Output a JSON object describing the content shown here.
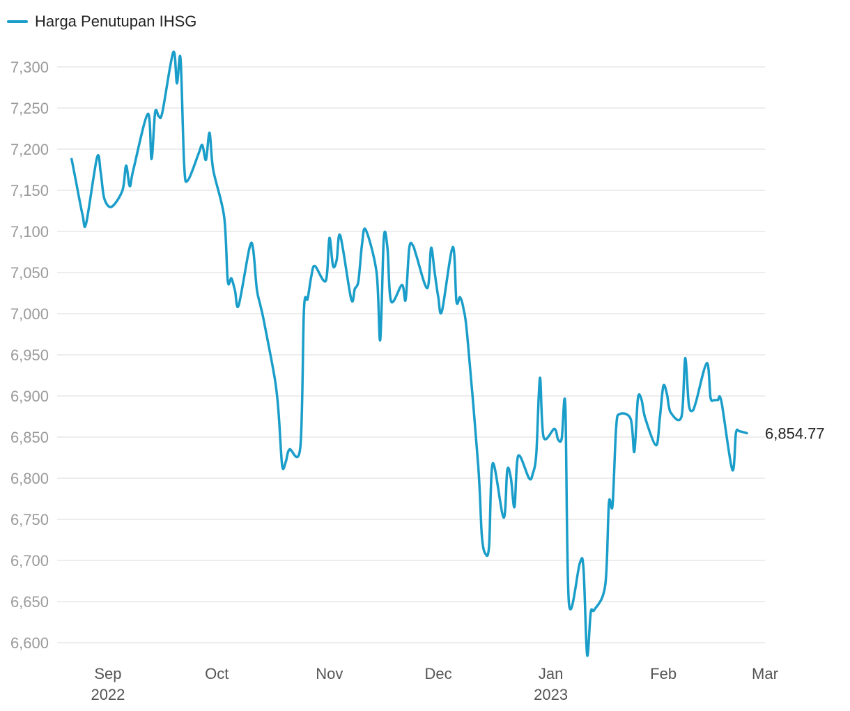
{
  "chart_data": {
    "type": "line",
    "colors": {
      "series": "#1a9ec9",
      "grid": "#e2e2e2",
      "tick": "#9a9a9a"
    },
    "series": [
      {
        "name": "Harga Penutupan IHSG",
        "points": [
          [
            "2022-08-22",
            7188
          ],
          [
            "2022-08-23",
            7165
          ],
          [
            "2022-08-25",
            7120
          ],
          [
            "2022-08-26",
            7110
          ],
          [
            "2022-08-29",
            7190
          ],
          [
            "2022-08-30",
            7172
          ],
          [
            "2022-08-31",
            7140
          ],
          [
            "2022-09-02",
            7130
          ],
          [
            "2022-09-05",
            7150
          ],
          [
            "2022-09-06",
            7180
          ],
          [
            "2022-09-07",
            7155
          ],
          [
            "2022-09-08",
            7175
          ],
          [
            "2022-09-12",
            7243
          ],
          [
            "2022-09-13",
            7188
          ],
          [
            "2022-09-14",
            7245
          ],
          [
            "2022-09-15",
            7240
          ],
          [
            "2022-09-16",
            7245
          ],
          [
            "2022-09-19",
            7318
          ],
          [
            "2022-09-20",
            7280
          ],
          [
            "2022-09-21",
            7310
          ],
          [
            "2022-09-22",
            7180
          ],
          [
            "2022-09-23",
            7162
          ],
          [
            "2022-09-26",
            7195
          ],
          [
            "2022-09-27",
            7205
          ],
          [
            "2022-09-28",
            7187
          ],
          [
            "2022-09-29",
            7220
          ],
          [
            "2022-09-30",
            7175
          ],
          [
            "2022-10-03",
            7118
          ],
          [
            "2022-10-04",
            7040
          ],
          [
            "2022-10-05",
            7043
          ],
          [
            "2022-10-06",
            7028
          ],
          [
            "2022-10-07",
            7010
          ],
          [
            "2022-10-10",
            7080
          ],
          [
            "2022-10-11",
            7078
          ],
          [
            "2022-10-12",
            7030
          ],
          [
            "2022-10-13",
            7010
          ],
          [
            "2022-10-14",
            6990
          ],
          [
            "2022-10-17",
            6920
          ],
          [
            "2022-10-18",
            6880
          ],
          [
            "2022-10-19",
            6815
          ],
          [
            "2022-10-20",
            6820
          ],
          [
            "2022-10-21",
            6835
          ],
          [
            "2022-10-24",
            6838
          ],
          [
            "2022-10-25",
            7005
          ],
          [
            "2022-10-26",
            7018
          ],
          [
            "2022-10-27",
            7045
          ],
          [
            "2022-10-28",
            7058
          ],
          [
            "2022-10-31",
            7040
          ],
          [
            "2022-11-01",
            7092
          ],
          [
            "2022-11-02",
            7058
          ],
          [
            "2022-11-03",
            7065
          ],
          [
            "2022-11-04",
            7095
          ],
          [
            "2022-11-07",
            7018
          ],
          [
            "2022-11-08",
            7030
          ],
          [
            "2022-11-09",
            7040
          ],
          [
            "2022-11-10",
            7085
          ],
          [
            "2022-11-11",
            7102
          ],
          [
            "2022-11-14",
            7050
          ],
          [
            "2022-11-15",
            6968
          ],
          [
            "2022-11-16",
            7092
          ],
          [
            "2022-11-17",
            7080
          ],
          [
            "2022-11-18",
            7015
          ],
          [
            "2022-11-21",
            7035
          ],
          [
            "2022-11-22",
            7017
          ],
          [
            "2022-11-23",
            7080
          ],
          [
            "2022-11-24",
            7083
          ],
          [
            "2022-11-25",
            7070
          ],
          [
            "2022-11-28",
            7031
          ],
          [
            "2022-11-29",
            7080
          ],
          [
            "2022-11-30",
            7050
          ],
          [
            "2022-12-01",
            7020
          ],
          [
            "2022-12-02",
            7003
          ],
          [
            "2022-12-05",
            7081
          ],
          [
            "2022-12-06",
            7015
          ],
          [
            "2022-12-07",
            7020
          ],
          [
            "2022-12-08",
            7005
          ],
          [
            "2022-12-09",
            6972
          ],
          [
            "2022-12-12",
            6815
          ],
          [
            "2022-12-13",
            6730
          ],
          [
            "2022-12-14",
            6708
          ],
          [
            "2022-12-15",
            6718
          ],
          [
            "2022-12-16",
            6818
          ],
          [
            "2022-12-19",
            6752
          ],
          [
            "2022-12-20",
            6810
          ],
          [
            "2022-12-21",
            6800
          ],
          [
            "2022-12-22",
            6765
          ],
          [
            "2022-12-23",
            6827
          ],
          [
            "2022-12-26",
            6800
          ],
          [
            "2022-12-27",
            6805
          ],
          [
            "2022-12-28",
            6830
          ],
          [
            "2022-12-29",
            6922
          ],
          [
            "2022-12-30",
            6850
          ],
          [
            "2023-01-02",
            6860
          ],
          [
            "2023-01-03",
            6847
          ],
          [
            "2023-01-04",
            6848
          ],
          [
            "2023-01-05",
            6888
          ],
          [
            "2023-01-06",
            6648
          ],
          [
            "2023-01-09",
            6697
          ],
          [
            "2023-01-10",
            6690
          ],
          [
            "2023-01-11",
            6585
          ],
          [
            "2023-01-12",
            6637
          ],
          [
            "2023-01-13",
            6640
          ],
          [
            "2023-01-16",
            6670
          ],
          [
            "2023-01-17",
            6770
          ],
          [
            "2023-01-18",
            6767
          ],
          [
            "2023-01-19",
            6862
          ],
          [
            "2023-01-20",
            6878
          ],
          [
            "2023-01-23",
            6872
          ],
          [
            "2023-01-24",
            6832
          ],
          [
            "2023-01-25",
            6897
          ],
          [
            "2023-01-26",
            6895
          ],
          [
            "2023-01-27",
            6873
          ],
          [
            "2023-01-30",
            6840
          ],
          [
            "2023-01-31",
            6872
          ],
          [
            "2023-02-01",
            6912
          ],
          [
            "2023-02-02",
            6902
          ],
          [
            "2023-02-03",
            6880
          ],
          [
            "2023-02-06",
            6875
          ],
          [
            "2023-02-07",
            6946
          ],
          [
            "2023-02-08",
            6890
          ],
          [
            "2023-02-09",
            6882
          ],
          [
            "2023-02-10",
            6893
          ],
          [
            "2023-02-13",
            6940
          ],
          [
            "2023-02-14",
            6898
          ],
          [
            "2023-02-15",
            6895
          ],
          [
            "2023-02-16",
            6895
          ],
          [
            "2023-02-17",
            6893
          ],
          [
            "2023-02-20",
            6810
          ],
          [
            "2023-02-21",
            6855
          ],
          [
            "2023-02-22",
            6857
          ],
          [
            "2023-02-24",
            6854.77
          ]
        ]
      }
    ],
    "title": "",
    "xlabel": "",
    "ylabel": "",
    "ylim": [
      6580,
      7330
    ],
    "y_ticks": [
      "6,600",
      "6,650",
      "6,700",
      "6,750",
      "6,800",
      "6,850",
      "6,900",
      "6,950",
      "7,000",
      "7,050",
      "7,100",
      "7,150",
      "7,200",
      "7,250",
      "7,300"
    ],
    "x_ticks": [
      {
        "date": "2022-09-01",
        "month": "Sep",
        "year": "2022"
      },
      {
        "date": "2022-10-01",
        "month": "Oct",
        "year": ""
      },
      {
        "date": "2022-11-01",
        "month": "Nov",
        "year": ""
      },
      {
        "date": "2022-12-01",
        "month": "Dec",
        "year": ""
      },
      {
        "date": "2023-01-01",
        "month": "Jan",
        "year": "2023"
      },
      {
        "date": "2023-02-01",
        "month": "Feb",
        "year": ""
      },
      {
        "date": "2023-03-01",
        "month": "Mar",
        "year": ""
      }
    ],
    "xlim": [
      "2022-08-18",
      "2023-03-01"
    ],
    "last_value_label": "6,854.77",
    "grid": true,
    "legend_position": "top-left"
  }
}
